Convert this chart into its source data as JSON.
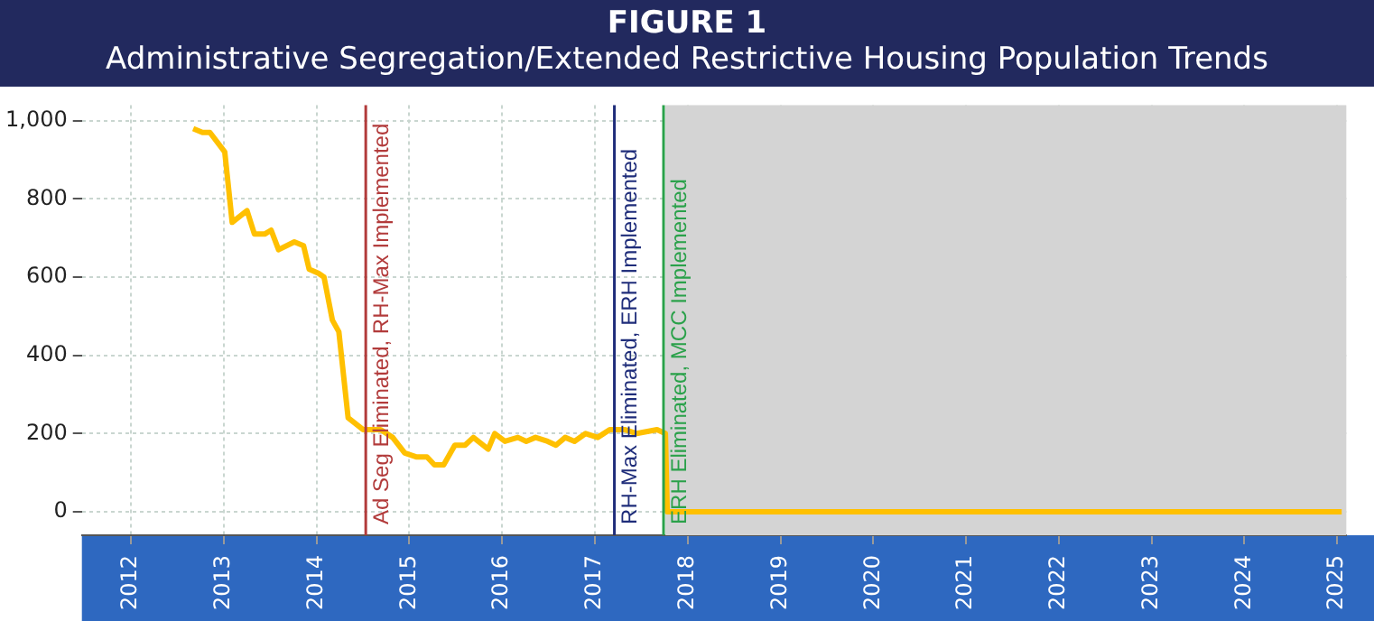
{
  "chart_data": {
    "type": "line",
    "title": "FIGURE 1",
    "subtitle": "Administrative Segregation/Extended Restrictive Housing Population Trends",
    "x": [
      2012.67,
      2012.77,
      2012.85,
      2013.01,
      2013.09,
      2013.25,
      2013.33,
      2013.44,
      2013.51,
      2013.59,
      2013.76,
      2013.86,
      2013.92,
      2014.02,
      2014.08,
      2014.17,
      2014.24,
      2014.34,
      2014.5,
      2014.69,
      2014.82,
      2014.95,
      2015.08,
      2015.19,
      2015.27,
      2015.37,
      2015.49,
      2015.6,
      2015.69,
      2015.85,
      2015.92,
      2016.03,
      2016.17,
      2016.26,
      2016.36,
      2016.49,
      2016.58,
      2016.68,
      2016.78,
      2016.9,
      2017.03,
      2017.16,
      2017.32,
      2017.45,
      2017.67,
      2017.76,
      2017.78,
      2025.05
    ],
    "series": [
      {
        "color": "#ffc000",
        "values": [
          980,
          970,
          970,
          920,
          740,
          770,
          710,
          710,
          720,
          670,
          690,
          680,
          620,
          610,
          600,
          490,
          460,
          240,
          210,
          210,
          190,
          150,
          140,
          140,
          120,
          120,
          170,
          170,
          190,
          160,
          200,
          180,
          190,
          180,
          190,
          180,
          170,
          190,
          180,
          200,
          190,
          210,
          210,
          200,
          210,
          200,
          0,
          0
        ]
      }
    ],
    "xlim": [
      2011.47,
      2025.1
    ],
    "xticks": [
      2012,
      2013,
      2014,
      2015,
      2016,
      2017,
      2018,
      2019,
      2020,
      2021,
      2022,
      2023,
      2024,
      2025
    ],
    "ylim": [
      -60,
      1040
    ],
    "yticks": [
      0,
      200,
      400,
      600,
      800,
      {
        "value": 1000,
        "label": "1,000"
      }
    ],
    "grid": true,
    "ref_lines": [
      {
        "axis": "x",
        "value": 2014.53,
        "label": "Ad Seg Eliminated, RH-Max Implemented",
        "color": "#b23b3b"
      },
      {
        "axis": "x",
        "value": 2017.21,
        "label": "RH-Max Eliminated, ERH Implemented",
        "color": "#1f2d7a"
      },
      {
        "axis": "x",
        "value": 2017.74,
        "label": "ERH Eliminated, MCC Implemented",
        "color": "#2aa14a"
      }
    ],
    "bands": [
      {
        "axis": "x",
        "from": 2017.76,
        "to": 2025.1,
        "color": "#d4d4d4"
      }
    ]
  }
}
